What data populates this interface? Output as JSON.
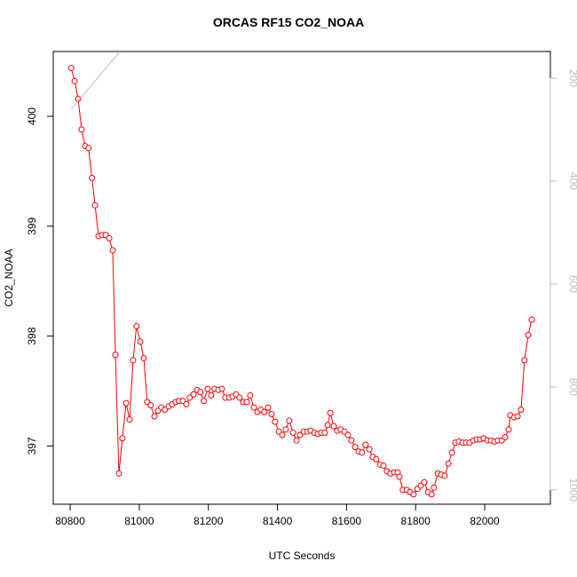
{
  "chart_data": {
    "type": "line",
    "title": "ORCAS RF15 CO2_NOAA",
    "xlabel": "UTC Seconds",
    "ylabel": "CO2_NOAA",
    "xlim": [
      80751,
      82190
    ],
    "ylim": [
      396.47,
      400.59
    ],
    "y2lim": [
      1028,
      148
    ],
    "xticks": [
      80800,
      81000,
      81200,
      81400,
      81600,
      81800,
      82000
    ],
    "yticks": [
      397,
      398,
      399,
      400
    ],
    "y2ticks": [
      200,
      400,
      600,
      800,
      1000
    ],
    "y2tick_color": "#bebebe",
    "series": [
      {
        "color": "#ff0000",
        "marker": "circle",
        "x": [
          80803,
          80813,
          80823,
          80833,
          80843,
          80853,
          80863,
          80872,
          80882,
          80892,
          80903,
          80913,
          80923,
          80931,
          80941,
          80951,
          80962,
          80972,
          80982,
          80992,
          81003,
          81013,
          81023,
          81033,
          81044,
          81054,
          81064,
          81074,
          81085,
          81095,
          81105,
          81115,
          81126,
          81136,
          81146,
          81157,
          81167,
          81177,
          81187,
          81198,
          81208,
          81218,
          81229,
          81239,
          81249,
          81260,
          81270,
          81280,
          81290,
          81301,
          81311,
          81321,
          81332,
          81342,
          81352,
          81362,
          81373,
          81383,
          81393,
          81404,
          81414,
          81424,
          81434,
          81445,
          81455,
          81465,
          81476,
          81486,
          81496,
          81507,
          81517,
          81527,
          81537,
          81545,
          81553,
          81563,
          81573,
          81583,
          81594,
          81604,
          81614,
          81625,
          81635,
          81645,
          81655,
          81666,
          81676,
          81686,
          81697,
          81707,
          81717,
          81727,
          81738,
          81748,
          81753,
          81763,
          81774,
          81784,
          81794,
          81805,
          81815,
          81825,
          81836,
          81846,
          81853,
          81864,
          81874,
          81884,
          81895,
          81905,
          81915,
          81925,
          81936,
          81946,
          81956,
          81967,
          81977,
          81987,
          81997,
          82008,
          82018,
          82028,
          82038,
          82049,
          82059,
          82069,
          82074,
          82085,
          82095,
          82105,
          82115,
          82126,
          82136
        ],
        "values": [
          400.44,
          400.32,
          400.16,
          399.88,
          399.73,
          399.71,
          399.44,
          399.19,
          398.91,
          398.92,
          398.92,
          398.89,
          398.78,
          397.83,
          396.75,
          397.07,
          397.39,
          397.24,
          397.78,
          398.09,
          397.95,
          397.8,
          397.4,
          397.37,
          397.27,
          397.32,
          397.35,
          397.33,
          397.36,
          397.38,
          397.4,
          397.41,
          397.41,
          397.38,
          397.44,
          397.47,
          397.51,
          397.49,
          397.41,
          397.52,
          397.46,
          397.52,
          397.51,
          397.52,
          397.44,
          397.44,
          397.45,
          397.47,
          397.44,
          397.4,
          397.4,
          397.46,
          397.35,
          397.31,
          397.33,
          397.31,
          397.35,
          397.29,
          397.22,
          397.13,
          397.1,
          397.15,
          397.23,
          397.12,
          397.05,
          397.1,
          397.13,
          397.13,
          397.14,
          397.12,
          397.11,
          397.12,
          397.12,
          397.19,
          397.3,
          397.18,
          397.14,
          397.15,
          397.13,
          397.1,
          397.05,
          396.99,
          396.95,
          396.94,
          397.01,
          396.97,
          396.9,
          396.88,
          396.83,
          396.82,
          396.77,
          396.75,
          396.76,
          396.76,
          396.72,
          396.6,
          396.6,
          396.58,
          396.56,
          396.61,
          396.64,
          396.67,
          396.58,
          396.56,
          396.62,
          396.75,
          396.74,
          396.73,
          396.84,
          396.94,
          397.03,
          397.04,
          397.03,
          397.03,
          397.03,
          397.05,
          397.06,
          397.06,
          397.07,
          397.05,
          397.05,
          397.04,
          397.05,
          397.05,
          397.08,
          397.15,
          397.28,
          397.26,
          397.27,
          397.33,
          397.78,
          398.01,
          398.15
        ]
      },
      {
        "color": "#bebebe",
        "axis": "y2",
        "x": [
          80803,
          80944
        ],
        "values": [
          260,
          148
        ]
      }
    ]
  }
}
